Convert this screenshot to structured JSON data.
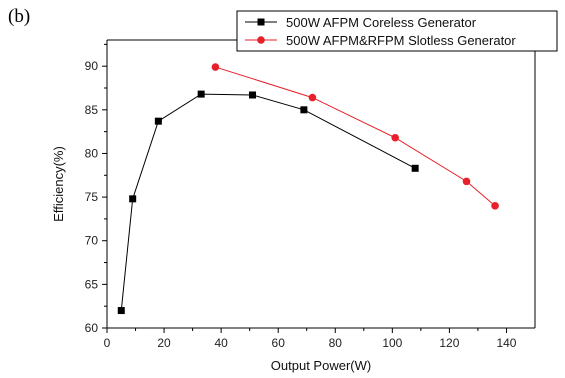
{
  "panel_label": "(b)",
  "chart_data": {
    "type": "line",
    "xlabel": "Output Power(W)",
    "ylabel": "Efficiency(%)",
    "xlim": [
      0,
      150
    ],
    "ylim": [
      60,
      93
    ],
    "xticks": [
      0,
      20,
      40,
      60,
      80,
      100,
      120,
      140
    ],
    "yticks": [
      60,
      65,
      70,
      75,
      80,
      85,
      90
    ],
    "legend_position": "top-right",
    "series": [
      {
        "name": "500W AFPM Coreless Generator",
        "color": "#000000",
        "marker": "square",
        "x": [
          5,
          9,
          18,
          33,
          51,
          69,
          108
        ],
        "y": [
          62.0,
          74.8,
          83.7,
          86.8,
          86.7,
          85.0,
          78.3
        ]
      },
      {
        "name": "500W AFPM&RFPM Slotless Generator",
        "color": "#e8202a",
        "marker": "circle",
        "x": [
          38,
          72,
          101,
          126,
          136
        ],
        "y": [
          89.9,
          86.4,
          81.8,
          76.8,
          74.0
        ]
      }
    ]
  }
}
